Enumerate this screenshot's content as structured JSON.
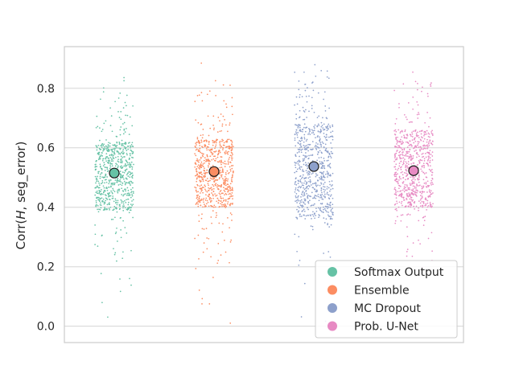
{
  "chart_data": {
    "type": "scatter",
    "subtype": "strip-with-mean",
    "ylabel": "Corr(H, seg_error)",
    "ylabel_parts": {
      "prefix": "Corr(",
      "italic": "H",
      "suffix": ", seg_error)"
    },
    "xlabel": "",
    "ylim": [
      -0.055,
      0.94
    ],
    "yticks": [
      "0.0",
      "0.2",
      "0.4",
      "0.6",
      "0.8"
    ],
    "ytick_values": [
      0.0,
      0.2,
      0.4,
      0.6,
      0.8
    ],
    "grid": true,
    "legend_position": "lower-right",
    "series": [
      {
        "name": "Softmax Output",
        "color": "#66c2a5",
        "mean": 0.515,
        "min": 0.01,
        "max": 0.875,
        "core_low": 0.39,
        "core_high": 0.62
      },
      {
        "name": "Ensemble",
        "color": "#fc8d62",
        "mean": 0.52,
        "min": 0.0,
        "max": 0.885,
        "core_low": 0.4,
        "core_high": 0.63
      },
      {
        "name": "MC Dropout",
        "color": "#8da0cb",
        "mean": 0.537,
        "min": -0.01,
        "max": 0.895,
        "core_low": 0.36,
        "core_high": 0.68
      },
      {
        "name": "Prob. U-Net",
        "color": "#e78ac3",
        "mean": 0.523,
        "min": 0.18,
        "max": 0.855,
        "core_low": 0.4,
        "core_high": 0.66
      }
    ]
  }
}
